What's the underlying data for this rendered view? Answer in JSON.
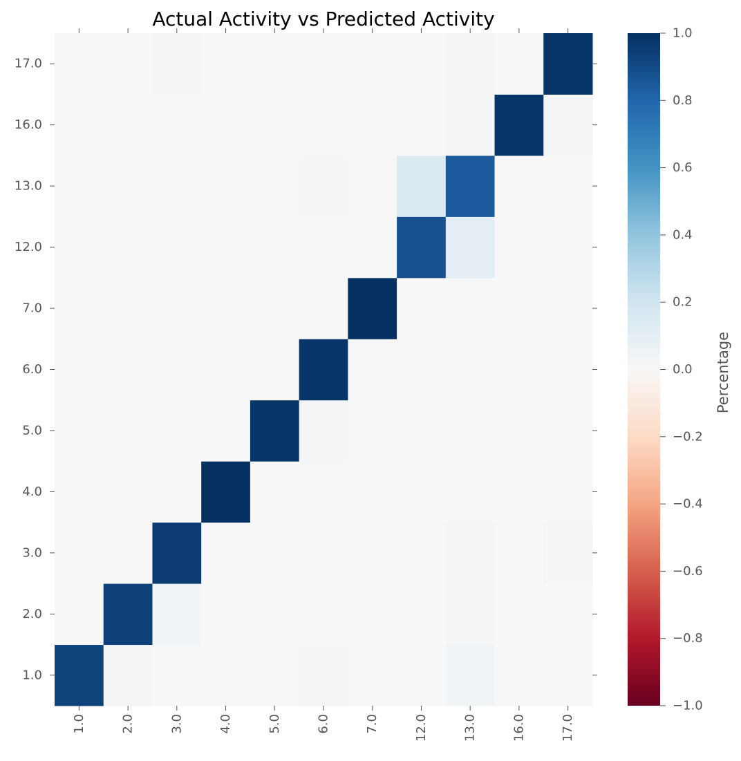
{
  "chart_data": {
    "type": "heatmap",
    "title": "Actual Activity vs Predicted Activity",
    "xlabel": "",
    "ylabel": "",
    "x_categories": [
      "1.0",
      "2.0",
      "3.0",
      "4.0",
      "5.0",
      "6.0",
      "7.0",
      "12.0",
      "13.0",
      "16.0",
      "17.0"
    ],
    "y_categories": [
      "1.0",
      "2.0",
      "3.0",
      "4.0",
      "5.0",
      "6.0",
      "7.0",
      "12.0",
      "13.0",
      "16.0",
      "17.0"
    ],
    "values": [
      [
        0.93,
        0.02,
        0.0,
        0.0,
        0.0,
        0.02,
        0.0,
        0.0,
        0.03,
        0.0,
        0.0
      ],
      [
        0.0,
        0.94,
        0.03,
        0.0,
        0.0,
        0.0,
        0.0,
        0.0,
        0.02,
        0.0,
        0.0
      ],
      [
        0.0,
        0.0,
        0.96,
        0.0,
        0.0,
        0.0,
        0.0,
        0.0,
        0.02,
        0.0,
        0.02
      ],
      [
        0.0,
        0.0,
        0.0,
        1.0,
        0.0,
        0.0,
        0.0,
        0.0,
        0.0,
        0.0,
        0.0
      ],
      [
        0.0,
        0.0,
        0.0,
        0.0,
        0.98,
        0.02,
        0.0,
        0.0,
        0.0,
        0.0,
        0.0
      ],
      [
        0.0,
        0.0,
        0.0,
        0.0,
        0.0,
        0.98,
        0.0,
        0.0,
        0.0,
        0.0,
        0.0
      ],
      [
        0.0,
        0.0,
        0.0,
        0.0,
        0.0,
        0.0,
        1.0,
        0.0,
        0.0,
        0.0,
        0.0
      ],
      [
        0.0,
        0.0,
        0.0,
        0.0,
        0.0,
        0.0,
        0.0,
        0.88,
        0.1,
        0.0,
        0.0
      ],
      [
        0.0,
        0.0,
        0.0,
        0.0,
        0.0,
        0.02,
        0.0,
        0.14,
        0.84,
        0.0,
        0.0
      ],
      [
        0.0,
        0.0,
        0.0,
        0.0,
        0.0,
        0.0,
        0.0,
        0.0,
        0.02,
        0.98,
        0.02
      ],
      [
        0.0,
        0.0,
        0.02,
        0.0,
        0.0,
        0.0,
        0.0,
        0.0,
        0.02,
        0.0,
        0.98
      ]
    ],
    "colorbar": {
      "label": "Percentage",
      "min": -1.0,
      "max": 1.0,
      "ticks": [
        -1.0,
        -0.8,
        -0.6,
        -0.4,
        -0.2,
        0.0,
        0.2,
        0.4,
        0.6,
        0.8,
        1.0
      ],
      "tick_labels": [
        "−1.0",
        "−0.8",
        "−0.6",
        "−0.4",
        "−0.2",
        "0.0",
        "0.2",
        "0.4",
        "0.6",
        "0.8",
        "1.0"
      ],
      "colormap": "RdBu",
      "stops": [
        "#67001f",
        "#b2182b",
        "#d6604d",
        "#f4a582",
        "#fddbc7",
        "#f7f7f7",
        "#d1e5f0",
        "#92c5de",
        "#4393c3",
        "#2166ac",
        "#053061"
      ]
    }
  }
}
